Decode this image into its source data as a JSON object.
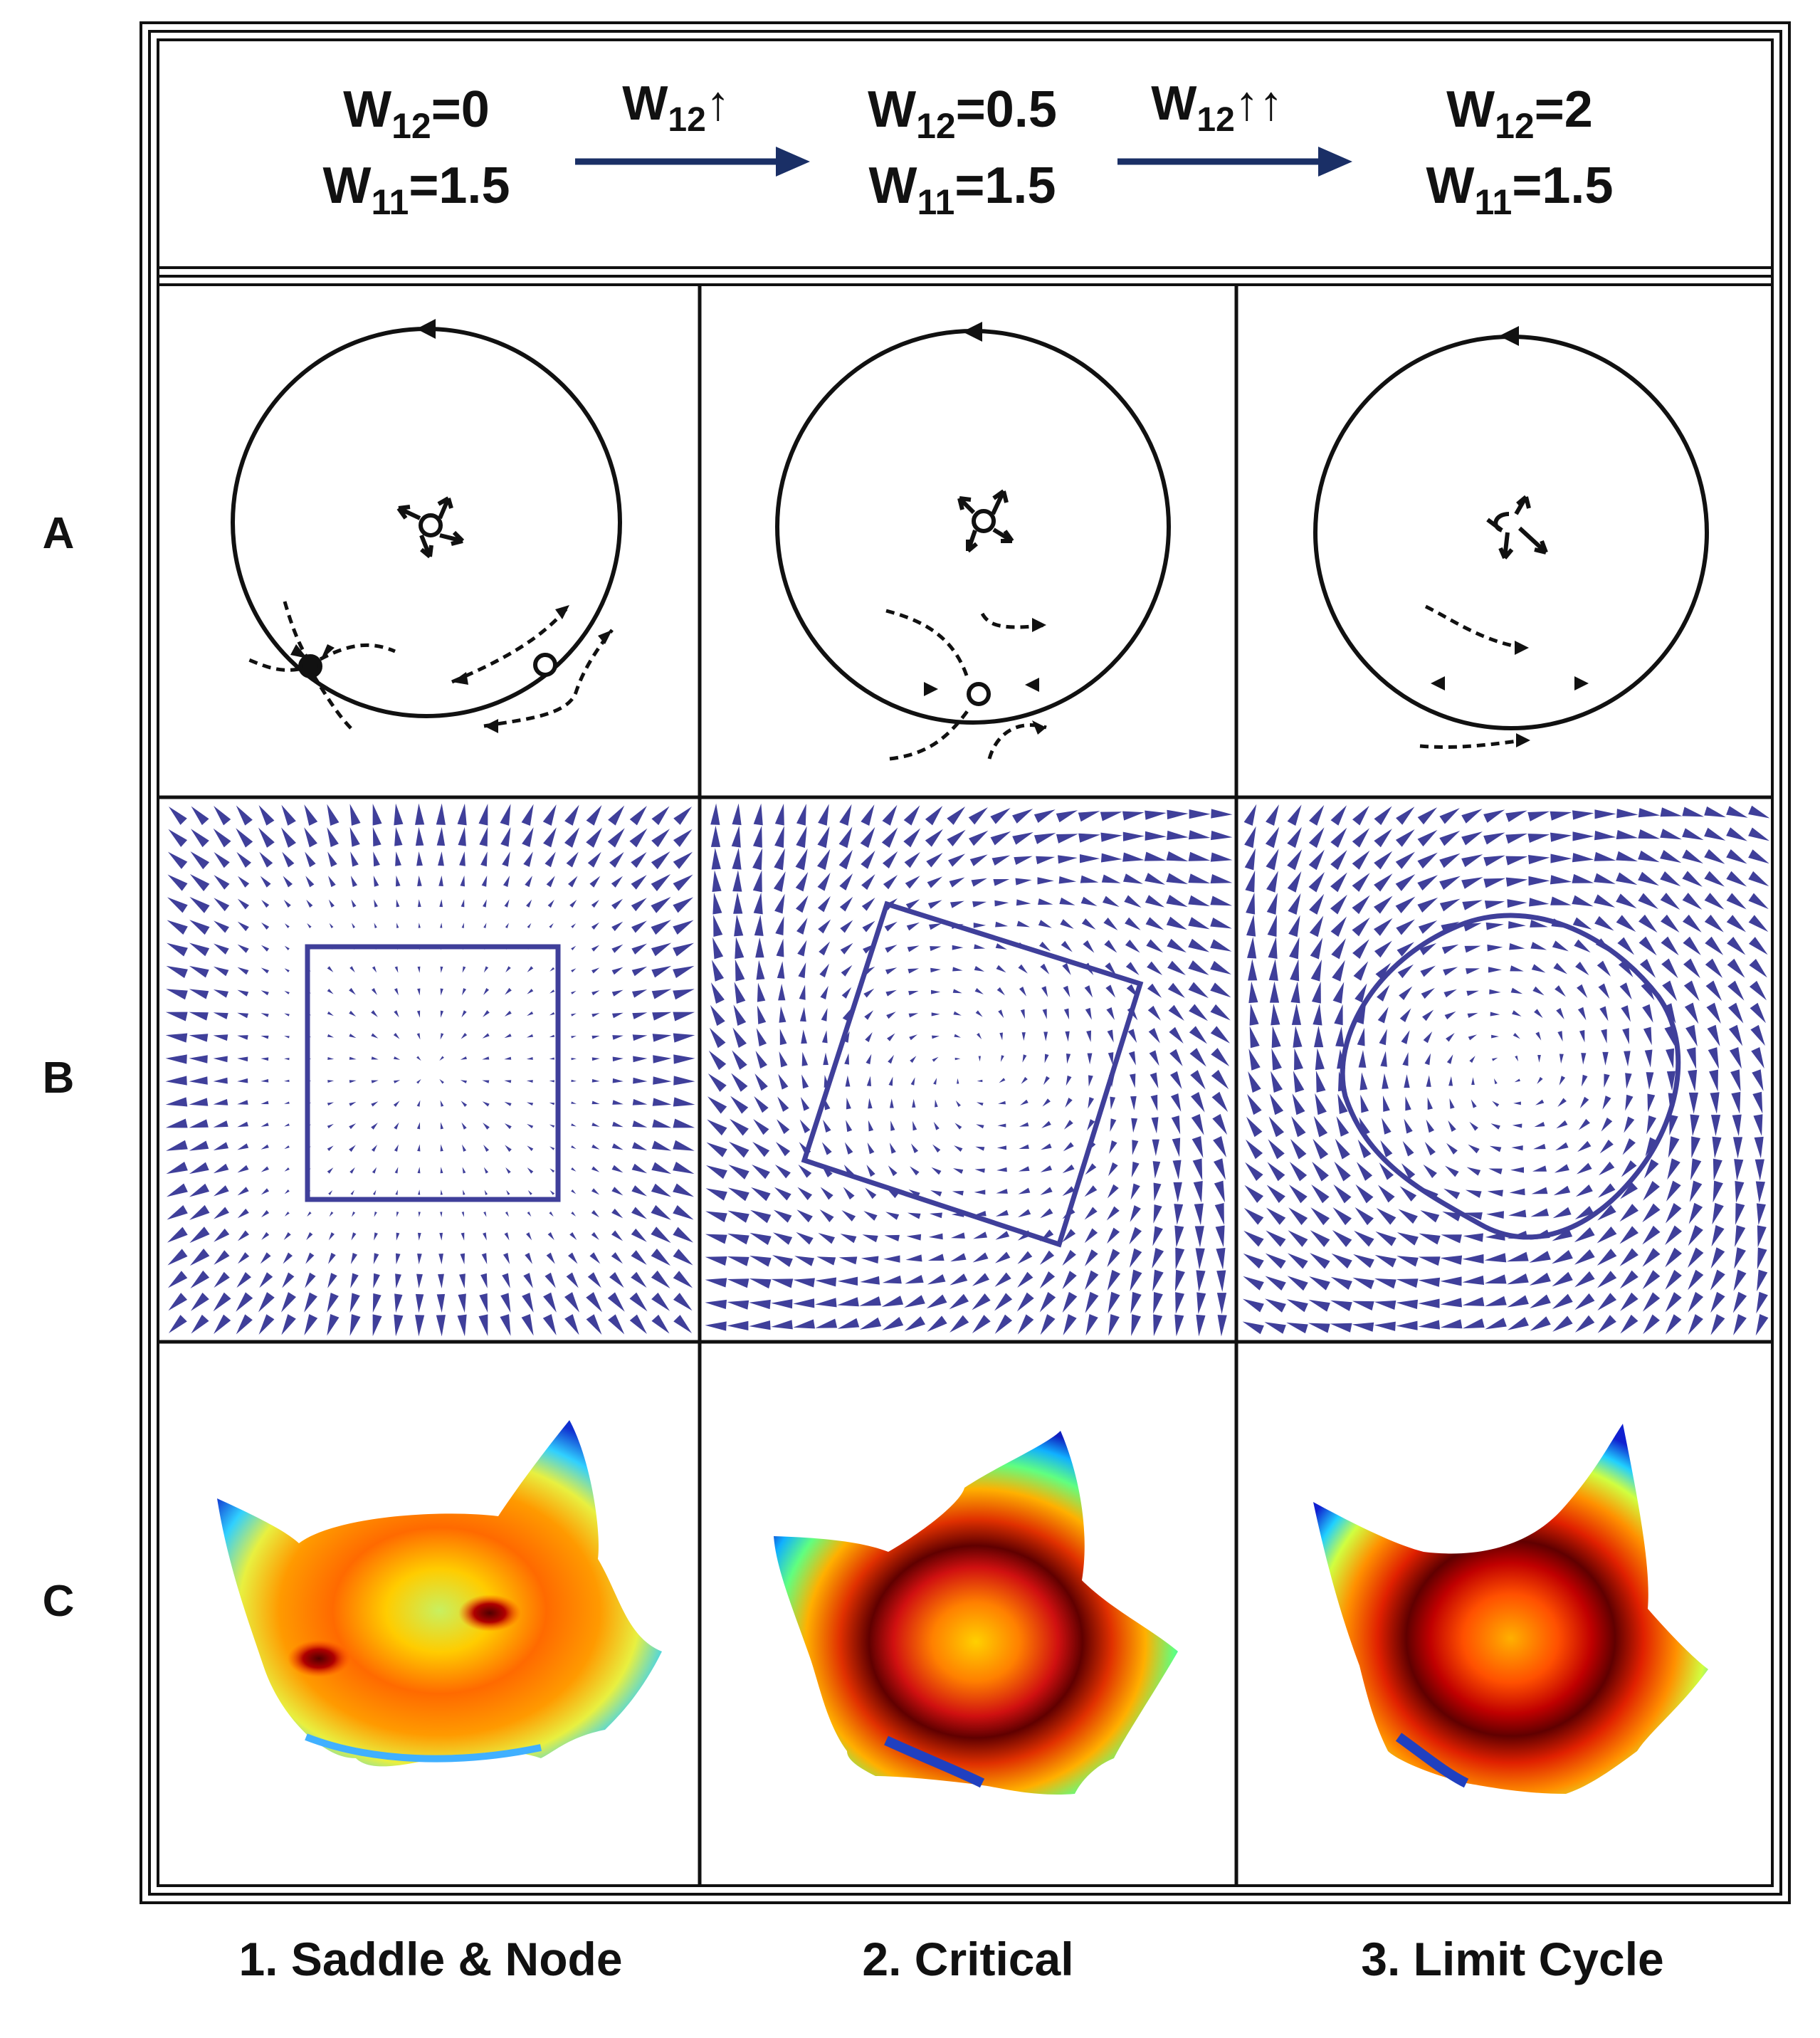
{
  "header": {
    "states": [
      {
        "w12_sym": "W",
        "w12_sub": "12",
        "w12_val": "=0",
        "w11_sym": "W",
        "w11_sub": "11",
        "w11_val": "=1.5"
      },
      {
        "w12_sym": "W",
        "w12_sub": "12",
        "w12_val": "=0.5",
        "w11_sym": "W",
        "w11_sub": "11",
        "w11_val": "=1.5"
      },
      {
        "w12_sym": "W",
        "w12_sub": "12",
        "w12_val": "=2",
        "w11_sym": "W",
        "w11_sub": "11",
        "w11_val": "=1.5"
      }
    ],
    "transitions": [
      {
        "sym": "W",
        "sub": "12",
        "arrows": "↑"
      },
      {
        "sym": "W",
        "sub": "12",
        "arrows": "↑↑"
      }
    ]
  },
  "rows": [
    "A",
    "B",
    "C"
  ],
  "columns": [
    "1. Saddle & Node",
    "2. Critical",
    "3. Limit Cycle"
  ],
  "colors": {
    "frame": "#111111",
    "arrow_blue": "#1a2f66",
    "vector_blue": "#3f3f9a"
  }
}
